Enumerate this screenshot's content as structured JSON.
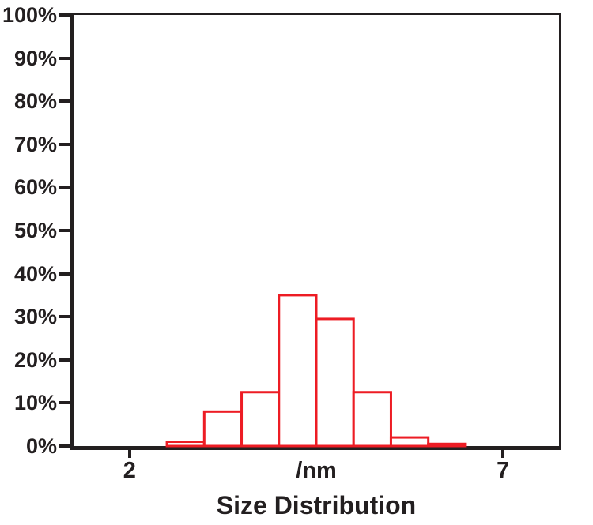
{
  "chart_data": {
    "type": "bar",
    "subtype": "histogram",
    "title": "Size Distribution",
    "xlabel": "/nm",
    "ylabel": "",
    "bin_edges": [
      2.5,
      3.0,
      3.5,
      4.0,
      4.5,
      5.0,
      5.5,
      6.0,
      6.5
    ],
    "values": [
      1,
      8,
      12.5,
      35,
      29.5,
      12.5,
      2,
      0.5
    ],
    "xlim": [
      1.25,
      7.75
    ],
    "ylim": [
      0,
      100
    ],
    "x_ticks": [
      2,
      7
    ],
    "x_tick_labels": [
      "2",
      "7"
    ],
    "y_ticks": [
      0,
      10,
      20,
      30,
      40,
      50,
      60,
      70,
      80,
      90,
      100
    ],
    "y_tick_labels": [
      "0%",
      "10%",
      "20%",
      "30%",
      "40%",
      "50%",
      "60%",
      "70%",
      "80%",
      "90%",
      "100%"
    ],
    "grid": false,
    "legend": false,
    "bar_color": "#ed1c24",
    "bar_fill": "#ffffff",
    "axis_color": "#231f20"
  }
}
